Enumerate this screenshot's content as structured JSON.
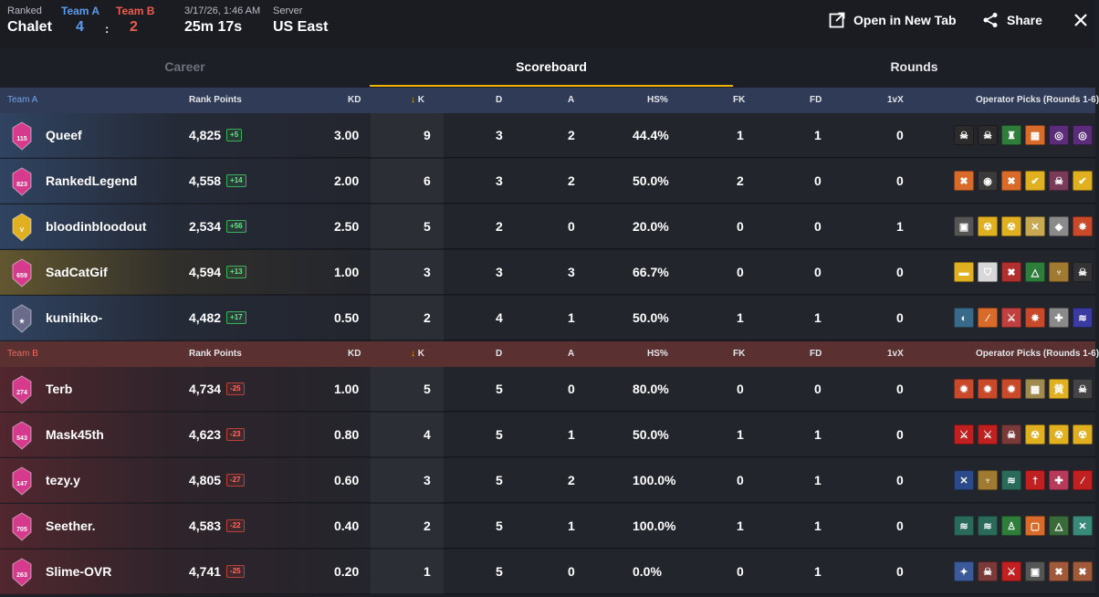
{
  "header": {
    "mode_label": "Ranked",
    "map": "Chalet",
    "team_a_label": "Team A",
    "team_b_label": "Team B",
    "team_a_score": "4",
    "score_separator": ":",
    "team_b_score": "2",
    "datetime": "3/17/26, 1:46 AM",
    "duration": "25m 17s",
    "server_label": "Server",
    "server": "US East",
    "open_new_tab_label": "Open in New Tab",
    "share_label": "Share"
  },
  "tabs": [
    {
      "label": "Career",
      "state": "inactive"
    },
    {
      "label": "Scoreboard",
      "state": "active"
    },
    {
      "label": "Rounds",
      "state": "inactive"
    }
  ],
  "columns": {
    "rank_points": "Rank Points",
    "kd": "KD",
    "k": "K",
    "d": "D",
    "a": "A",
    "hs": "HS%",
    "fk": "FK",
    "fd": "FD",
    "onevx": "1vX",
    "operators": "Operator Picks (Rounds 1-6)"
  },
  "teams": [
    {
      "name": "Team A",
      "color": "#5b9cf0",
      "players": [
        {
          "name": "Queef",
          "rank_badge": "115",
          "badge_color": "#d63a8c",
          "rank_points": "4,825",
          "delta": "+5",
          "kd": "3.00",
          "k": "9",
          "d": "3",
          "a": "2",
          "hs": "44.4%",
          "fk": "1",
          "fd": "1",
          "onevx": "0",
          "ops": [
            {
              "icon": "skull-icon",
              "color": "#2b2b2b",
              "glyph": "☠"
            },
            {
              "icon": "skull-icon",
              "color": "#2b2b2b",
              "glyph": "☠"
            },
            {
              "icon": "tower-icon",
              "color": "#2e7d3a",
              "glyph": "♜"
            },
            {
              "icon": "grid-icon",
              "color": "#d86b2a",
              "glyph": "▦"
            },
            {
              "icon": "spiral-icon",
              "color": "#5b2c7a",
              "glyph": "◎"
            },
            {
              "icon": "spiral-icon",
              "color": "#5b2c7a",
              "glyph": "◎"
            }
          ]
        },
        {
          "name": "RankedLegend",
          "rank_badge": "823",
          "badge_color": "#d63a8c",
          "rank_points": "4,558",
          "delta": "+14",
          "kd": "2.00",
          "k": "6",
          "d": "3",
          "a": "2",
          "hs": "50.0%",
          "fk": "2",
          "fd": "0",
          "onevx": "0",
          "ops": [
            {
              "icon": "crossbones-icon",
              "color": "#d86b2a",
              "glyph": "✖"
            },
            {
              "icon": "mask-icon",
              "color": "#3a3a3a",
              "glyph": "◉"
            },
            {
              "icon": "crossbones-icon",
              "color": "#d86b2a",
              "glyph": "✖"
            },
            {
              "icon": "check-icon",
              "color": "#e0b020",
              "glyph": "✔"
            },
            {
              "icon": "skull-icon",
              "color": "#7a3a5a",
              "glyph": "☠"
            },
            {
              "icon": "check-icon",
              "color": "#e0b020",
              "glyph": "✔"
            }
          ]
        },
        {
          "name": "bloodinbloodout",
          "rank_badge": "V",
          "badge_color": "#e0b020",
          "rank_points": "2,534",
          "delta": "+56",
          "kd": "2.50",
          "k": "5",
          "d": "2",
          "a": "0",
          "hs": "20.0%",
          "fk": "0",
          "fd": "0",
          "onevx": "1",
          "ops": [
            {
              "icon": "robot-icon",
              "color": "#555555",
              "glyph": "▣"
            },
            {
              "icon": "radiation-icon",
              "color": "#e0b020",
              "glyph": "☢"
            },
            {
              "icon": "radiation-icon",
              "color": "#e0b020",
              "glyph": "☢"
            },
            {
              "icon": "cross-icon",
              "color": "#c8a850",
              "glyph": "✕"
            },
            {
              "icon": "shield-icon",
              "color": "#8a8a8a",
              "glyph": "◆"
            },
            {
              "icon": "star-icon",
              "color": "#c84a2a",
              "glyph": "✸"
            }
          ]
        },
        {
          "name": "SadCatGif",
          "rank_badge": "659",
          "badge_color": "#d63a8c",
          "rank_points": "4,594",
          "delta": "+13",
          "kd": "1.00",
          "k": "3",
          "d": "3",
          "a": "3",
          "hs": "66.7%",
          "fk": "0",
          "fd": "0",
          "onevx": "0",
          "ops": [
            {
              "icon": "visor-icon",
              "color": "#e0b020",
              "glyph": "▬"
            },
            {
              "icon": "shield-icon",
              "color": "#d8d8d8",
              "glyph": "⛉"
            },
            {
              "icon": "crossbones-icon",
              "color": "#b03030",
              "glyph": "✖"
            },
            {
              "icon": "triangle-icon",
              "color": "#2e7d3a",
              "glyph": "△"
            },
            {
              "icon": "wings-icon",
              "color": "#a07a30",
              "glyph": "♆"
            },
            {
              "icon": "skull-icon",
              "color": "#333333",
              "glyph": "☠"
            }
          ]
        },
        {
          "name": "kunihiko-",
          "rank_badge": "★",
          "badge_color": "#6a6a8a",
          "rank_points": "4,482",
          "delta": "+17",
          "kd": "0.50",
          "k": "2",
          "d": "4",
          "a": "1",
          "hs": "50.0%",
          "fk": "1",
          "fd": "1",
          "onevx": "0",
          "ops": [
            {
              "icon": "helmet-icon",
              "color": "#3a6a8a",
              "glyph": "◐"
            },
            {
              "icon": "slash-icon",
              "color": "#d86b2a",
              "glyph": "⁄"
            },
            {
              "icon": "claw-icon",
              "color": "#c04040",
              "glyph": "⚔"
            },
            {
              "icon": "star-icon",
              "color": "#c84a2a",
              "glyph": "✸"
            },
            {
              "icon": "bug-icon",
              "color": "#8a8a8a",
              "glyph": "✚"
            },
            {
              "icon": "wave-icon",
              "color": "#3a3aa0",
              "glyph": "≋"
            }
          ]
        }
      ]
    },
    {
      "name": "Team B",
      "color": "#ef5c4b",
      "players": [
        {
          "name": "Terb",
          "rank_badge": "274",
          "badge_color": "#d63a8c",
          "rank_points": "4,734",
          "delta": "-25",
          "kd": "1.00",
          "k": "5",
          "d": "5",
          "a": "0",
          "hs": "80.0%",
          "fk": "0",
          "fd": "0",
          "onevx": "0",
          "ops": [
            {
              "icon": "burst-icon",
              "color": "#c84a2a",
              "glyph": "✹"
            },
            {
              "icon": "burst-icon",
              "color": "#c84a2a",
              "glyph": "✹"
            },
            {
              "icon": "burst-icon",
              "color": "#c84a2a",
              "glyph": "✹"
            },
            {
              "icon": "grid-icon",
              "color": "#a08a50",
              "glyph": "▦"
            },
            {
              "icon": "kanji-icon",
              "color": "#e0b020",
              "glyph": "黄"
            },
            {
              "icon": "skull-icon",
              "color": "#444444",
              "glyph": "☠"
            }
          ]
        },
        {
          "name": "Mask45th",
          "rank_badge": "543",
          "badge_color": "#d63a8c",
          "rank_points": "4,623",
          "delta": "-23",
          "kd": "0.80",
          "k": "4",
          "d": "5",
          "a": "1",
          "hs": "50.0%",
          "fk": "1",
          "fd": "1",
          "onevx": "0",
          "ops": [
            {
              "icon": "claw-icon",
              "color": "#c02020",
              "glyph": "⚔"
            },
            {
              "icon": "claw-icon",
              "color": "#c02020",
              "glyph": "⚔"
            },
            {
              "icon": "skull-icon",
              "color": "#7a3a3a",
              "glyph": "☠"
            },
            {
              "icon": "radiation-icon",
              "color": "#e0b020",
              "glyph": "☢"
            },
            {
              "icon": "radiation-icon",
              "color": "#e0b020",
              "glyph": "☢"
            },
            {
              "icon": "radiation-icon",
              "color": "#e0b020",
              "glyph": "☢"
            }
          ]
        },
        {
          "name": "tezy.y",
          "rank_badge": "147",
          "badge_color": "#d63a8c",
          "rank_points": "4,805",
          "delta": "-27",
          "kd": "0.60",
          "k": "3",
          "d": "5",
          "a": "2",
          "hs": "100.0%",
          "fk": "0",
          "fd": "1",
          "onevx": "0",
          "ops": [
            {
              "icon": "cross-icon",
              "color": "#2a4a8a",
              "glyph": "✕"
            },
            {
              "icon": "wings-icon",
              "color": "#a07a30",
              "glyph": "♆"
            },
            {
              "icon": "wave-icon",
              "color": "#2a6a5a",
              "glyph": "≋"
            },
            {
              "icon": "knife-icon",
              "color": "#c02020",
              "glyph": "†"
            },
            {
              "icon": "bug-icon",
              "color": "#b83a5a",
              "glyph": "✚"
            },
            {
              "icon": "slash-icon",
              "color": "#c02020",
              "glyph": "⁄"
            }
          ]
        },
        {
          "name": "Seether.",
          "rank_badge": "705",
          "badge_color": "#d63a8c",
          "rank_points": "4,583",
          "delta": "-22",
          "kd": "0.40",
          "k": "2",
          "d": "5",
          "a": "1",
          "hs": "100.0%",
          "fk": "1",
          "fd": "1",
          "onevx": "0",
          "ops": [
            {
              "icon": "wave-icon",
              "color": "#2a6a5a",
              "glyph": "≋"
            },
            {
              "icon": "wave-icon",
              "color": "#2a6a5a",
              "glyph": "≋"
            },
            {
              "icon": "person-icon",
              "color": "#2e7d3a",
              "glyph": "♙"
            },
            {
              "icon": "box-icon",
              "color": "#d86b2a",
              "glyph": "▢"
            },
            {
              "icon": "triangle-icon",
              "color": "#3a6a3a",
              "glyph": "△"
            },
            {
              "icon": "cross-icon",
              "color": "#3a8a7a",
              "glyph": "✕"
            }
          ]
        },
        {
          "name": "Slime-OVR",
          "rank_badge": "263",
          "badge_color": "#d63a8c",
          "rank_points": "4,741",
          "delta": "-25",
          "kd": "0.20",
          "k": "1",
          "d": "5",
          "a": "0",
          "hs": "0.0%",
          "fk": "0",
          "fd": "1",
          "onevx": "0",
          "ops": [
            {
              "icon": "spark-icon",
              "color": "#3a5a9a",
              "glyph": "✦"
            },
            {
              "icon": "skull-icon",
              "color": "#7a3a3a",
              "glyph": "☠"
            },
            {
              "icon": "claw-icon",
              "color": "#c02020",
              "glyph": "⚔"
            },
            {
              "icon": "robot-icon",
              "color": "#555555",
              "glyph": "▣"
            },
            {
              "icon": "crossbones-icon",
              "color": "#a05a3a",
              "glyph": "✖"
            },
            {
              "icon": "crossbones-icon",
              "color": "#a05a3a",
              "glyph": "✖"
            }
          ]
        }
      ]
    }
  ]
}
